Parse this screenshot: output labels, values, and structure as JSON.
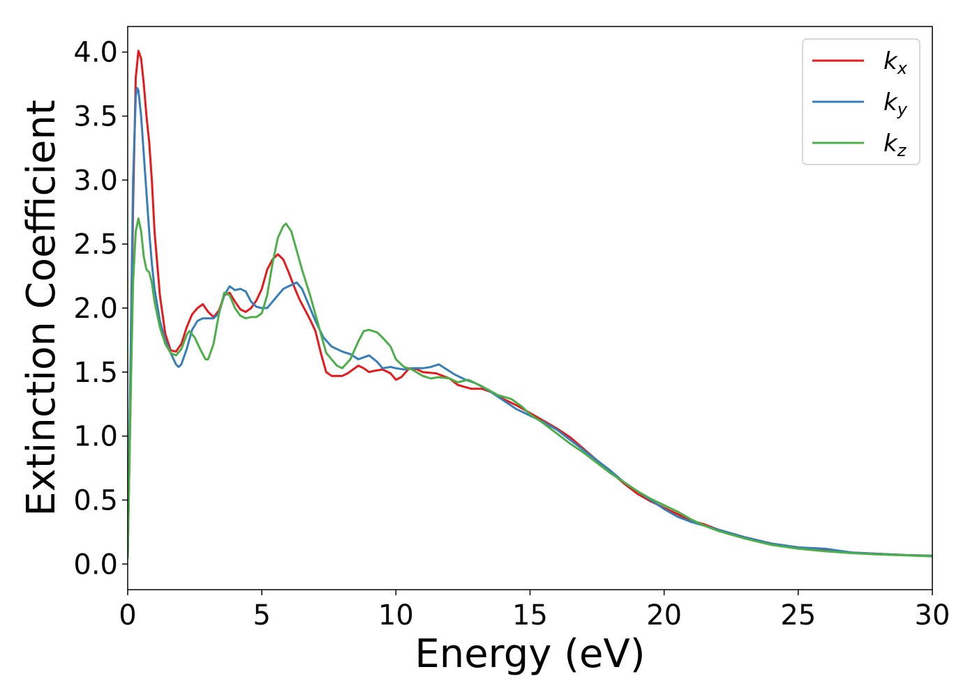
{
  "chart_data": {
    "type": "line",
    "title": "",
    "xlabel": "Energy (eV)",
    "ylabel": "Extinction Coefficient",
    "xlim": [
      0,
      30
    ],
    "ylim": [
      -0.2,
      4.2
    ],
    "xticks": [
      0,
      5,
      10,
      15,
      20,
      25,
      30
    ],
    "xtick_labels": [
      "0",
      "5",
      "10",
      "15",
      "20",
      "25",
      "30"
    ],
    "yticks": [
      0.0,
      0.5,
      1.0,
      1.5,
      2.0,
      2.5,
      3.0,
      3.5,
      4.0
    ],
    "ytick_labels": [
      "0.0",
      "0.5",
      "1.0",
      "1.5",
      "2.0",
      "2.5",
      "3.0",
      "3.5",
      "4.0"
    ],
    "grid": false,
    "legend_position": "top-right",
    "series": [
      {
        "name": "k",
        "subscript": "x",
        "color": "#e41a1c",
        "points": [
          [
            0,
            0.05
          ],
          [
            0.1,
            1.2
          ],
          [
            0.2,
            2.8
          ],
          [
            0.3,
            3.8
          ],
          [
            0.4,
            4.01
          ],
          [
            0.5,
            3.95
          ],
          [
            0.6,
            3.75
          ],
          [
            0.7,
            3.5
          ],
          [
            0.8,
            3.3
          ],
          [
            0.9,
            3.0
          ],
          [
            1.0,
            2.6
          ],
          [
            1.2,
            2.1
          ],
          [
            1.4,
            1.8
          ],
          [
            1.6,
            1.67
          ],
          [
            1.8,
            1.66
          ],
          [
            2.0,
            1.72
          ],
          [
            2.2,
            1.85
          ],
          [
            2.4,
            1.95
          ],
          [
            2.6,
            2.0
          ],
          [
            2.8,
            2.03
          ],
          [
            3.0,
            1.97
          ],
          [
            3.2,
            1.93
          ],
          [
            3.4,
            1.98
          ],
          [
            3.6,
            2.1
          ],
          [
            3.8,
            2.12
          ],
          [
            4.0,
            2.05
          ],
          [
            4.2,
            1.99
          ],
          [
            4.4,
            1.97
          ],
          [
            4.6,
            2.0
          ],
          [
            4.8,
            2.06
          ],
          [
            5.0,
            2.15
          ],
          [
            5.2,
            2.3
          ],
          [
            5.4,
            2.38
          ],
          [
            5.6,
            2.42
          ],
          [
            5.8,
            2.38
          ],
          [
            6.0,
            2.28
          ],
          [
            6.2,
            2.17
          ],
          [
            6.4,
            2.07
          ],
          [
            6.6,
            1.99
          ],
          [
            6.8,
            1.91
          ],
          [
            7.0,
            1.82
          ],
          [
            7.2,
            1.65
          ],
          [
            7.4,
            1.5
          ],
          [
            7.6,
            1.47
          ],
          [
            7.8,
            1.47
          ],
          [
            8.0,
            1.47
          ],
          [
            8.2,
            1.49
          ],
          [
            8.4,
            1.52
          ],
          [
            8.6,
            1.55
          ],
          [
            8.8,
            1.53
          ],
          [
            9.0,
            1.5
          ],
          [
            9.2,
            1.51
          ],
          [
            9.5,
            1.52
          ],
          [
            9.8,
            1.49
          ],
          [
            10.0,
            1.44
          ],
          [
            10.2,
            1.46
          ],
          [
            10.5,
            1.53
          ],
          [
            10.8,
            1.52
          ],
          [
            11.0,
            1.5
          ],
          [
            11.5,
            1.49
          ],
          [
            12.0,
            1.45
          ],
          [
            12.3,
            1.4
          ],
          [
            12.8,
            1.37
          ],
          [
            13.2,
            1.37
          ],
          [
            13.6,
            1.34
          ],
          [
            14.0,
            1.29
          ],
          [
            14.5,
            1.24
          ],
          [
            15.0,
            1.18
          ],
          [
            15.5,
            1.12
          ],
          [
            16.0,
            1.06
          ],
          [
            16.5,
            0.99
          ],
          [
            17.0,
            0.9
          ],
          [
            17.5,
            0.81
          ],
          [
            18.0,
            0.72
          ],
          [
            18.5,
            0.63
          ],
          [
            19.0,
            0.55
          ],
          [
            19.5,
            0.49
          ],
          [
            20.0,
            0.44
          ],
          [
            20.5,
            0.39
          ],
          [
            21.0,
            0.34
          ],
          [
            21.5,
            0.31
          ],
          [
            22.0,
            0.27
          ],
          [
            23.0,
            0.21
          ],
          [
            24.0,
            0.16
          ],
          [
            25.0,
            0.13
          ],
          [
            26.0,
            0.11
          ],
          [
            27.0,
            0.09
          ],
          [
            28.0,
            0.08
          ],
          [
            29.0,
            0.07
          ],
          [
            30.0,
            0.065
          ]
        ]
      },
      {
        "name": "k",
        "subscript": "y",
        "color": "#377eb8",
        "points": [
          [
            0,
            0.05
          ],
          [
            0.1,
            1.5
          ],
          [
            0.2,
            3.0
          ],
          [
            0.3,
            3.65
          ],
          [
            0.35,
            3.72
          ],
          [
            0.4,
            3.7
          ],
          [
            0.5,
            3.5
          ],
          [
            0.6,
            3.2
          ],
          [
            0.7,
            2.9
          ],
          [
            0.8,
            2.6
          ],
          [
            0.9,
            2.35
          ],
          [
            1.0,
            2.15
          ],
          [
            1.2,
            1.9
          ],
          [
            1.4,
            1.75
          ],
          [
            1.6,
            1.65
          ],
          [
            1.8,
            1.56
          ],
          [
            1.9,
            1.54
          ],
          [
            2.0,
            1.56
          ],
          [
            2.2,
            1.68
          ],
          [
            2.4,
            1.83
          ],
          [
            2.6,
            1.9
          ],
          [
            2.8,
            1.92
          ],
          [
            3.0,
            1.92
          ],
          [
            3.2,
            1.92
          ],
          [
            3.4,
            1.96
          ],
          [
            3.6,
            2.1
          ],
          [
            3.8,
            2.17
          ],
          [
            4.0,
            2.14
          ],
          [
            4.2,
            2.15
          ],
          [
            4.4,
            2.13
          ],
          [
            4.6,
            2.05
          ],
          [
            4.8,
            2.01
          ],
          [
            5.0,
            2.0
          ],
          [
            5.2,
            2.0
          ],
          [
            5.4,
            2.05
          ],
          [
            5.6,
            2.1
          ],
          [
            5.8,
            2.15
          ],
          [
            6.0,
            2.17
          ],
          [
            6.2,
            2.19
          ],
          [
            6.3,
            2.2
          ],
          [
            6.5,
            2.15
          ],
          [
            6.8,
            2.0
          ],
          [
            7.0,
            1.9
          ],
          [
            7.3,
            1.77
          ],
          [
            7.6,
            1.7
          ],
          [
            8.0,
            1.66
          ],
          [
            8.3,
            1.64
          ],
          [
            8.6,
            1.6
          ],
          [
            9.0,
            1.63
          ],
          [
            9.3,
            1.58
          ],
          [
            9.5,
            1.53
          ],
          [
            9.8,
            1.54
          ],
          [
            10.0,
            1.53
          ],
          [
            10.3,
            1.52
          ],
          [
            10.6,
            1.53
          ],
          [
            11.0,
            1.53
          ],
          [
            11.3,
            1.54
          ],
          [
            11.6,
            1.56
          ],
          [
            11.9,
            1.52
          ],
          [
            12.2,
            1.48
          ],
          [
            12.6,
            1.44
          ],
          [
            13.0,
            1.41
          ],
          [
            13.5,
            1.35
          ],
          [
            14.0,
            1.28
          ],
          [
            14.5,
            1.21
          ],
          [
            15.0,
            1.16
          ],
          [
            15.5,
            1.11
          ],
          [
            16.0,
            1.05
          ],
          [
            16.5,
            0.97
          ],
          [
            17.0,
            0.89
          ],
          [
            17.5,
            0.81
          ],
          [
            18.0,
            0.73
          ],
          [
            18.5,
            0.64
          ],
          [
            19.0,
            0.57
          ],
          [
            19.5,
            0.5
          ],
          [
            20.0,
            0.43
          ],
          [
            20.5,
            0.37
          ],
          [
            21.0,
            0.33
          ],
          [
            21.5,
            0.3
          ],
          [
            22.0,
            0.27
          ],
          [
            23.0,
            0.21
          ],
          [
            24.0,
            0.16
          ],
          [
            25.0,
            0.13
          ],
          [
            26.0,
            0.12
          ],
          [
            27.0,
            0.09
          ],
          [
            28.0,
            0.08
          ],
          [
            29.0,
            0.07
          ],
          [
            30.0,
            0.065
          ]
        ]
      },
      {
        "name": "k",
        "subscript": "z",
        "color": "#4daf4a",
        "points": [
          [
            0,
            0.05
          ],
          [
            0.1,
            1.2
          ],
          [
            0.2,
            2.2
          ],
          [
            0.3,
            2.6
          ],
          [
            0.4,
            2.7
          ],
          [
            0.5,
            2.6
          ],
          [
            0.6,
            2.4
          ],
          [
            0.7,
            2.3
          ],
          [
            0.8,
            2.28
          ],
          [
            0.9,
            2.2
          ],
          [
            1.0,
            2.05
          ],
          [
            1.2,
            1.85
          ],
          [
            1.4,
            1.72
          ],
          [
            1.6,
            1.65
          ],
          [
            1.8,
            1.63
          ],
          [
            2.0,
            1.68
          ],
          [
            2.2,
            1.79
          ],
          [
            2.3,
            1.82
          ],
          [
            2.5,
            1.77
          ],
          [
            2.7,
            1.68
          ],
          [
            2.9,
            1.6
          ],
          [
            3.0,
            1.6
          ],
          [
            3.2,
            1.72
          ],
          [
            3.4,
            1.95
          ],
          [
            3.6,
            2.12
          ],
          [
            3.8,
            2.1
          ],
          [
            4.0,
            2.0
          ],
          [
            4.2,
            1.94
          ],
          [
            4.4,
            1.92
          ],
          [
            4.6,
            1.93
          ],
          [
            4.8,
            1.93
          ],
          [
            5.0,
            1.96
          ],
          [
            5.2,
            2.1
          ],
          [
            5.4,
            2.35
          ],
          [
            5.6,
            2.55
          ],
          [
            5.8,
            2.64
          ],
          [
            5.9,
            2.66
          ],
          [
            6.1,
            2.6
          ],
          [
            6.3,
            2.45
          ],
          [
            6.5,
            2.3
          ],
          [
            6.8,
            2.1
          ],
          [
            7.0,
            1.95
          ],
          [
            7.2,
            1.8
          ],
          [
            7.4,
            1.65
          ],
          [
            7.6,
            1.6
          ],
          [
            7.8,
            1.55
          ],
          [
            8.0,
            1.53
          ],
          [
            8.3,
            1.6
          ],
          [
            8.6,
            1.74
          ],
          [
            8.8,
            1.82
          ],
          [
            9.0,
            1.83
          ],
          [
            9.3,
            1.81
          ],
          [
            9.5,
            1.77
          ],
          [
            9.8,
            1.7
          ],
          [
            10.0,
            1.6
          ],
          [
            10.3,
            1.54
          ],
          [
            10.6,
            1.52
          ],
          [
            11.0,
            1.47
          ],
          [
            11.3,
            1.45
          ],
          [
            11.6,
            1.46
          ],
          [
            12.0,
            1.45
          ],
          [
            12.3,
            1.42
          ],
          [
            12.7,
            1.44
          ],
          [
            13.2,
            1.39
          ],
          [
            13.8,
            1.32
          ],
          [
            14.3,
            1.29
          ],
          [
            14.7,
            1.23
          ],
          [
            15.0,
            1.17
          ],
          [
            15.5,
            1.1
          ],
          [
            16.0,
            1.02
          ],
          [
            16.5,
            0.94
          ],
          [
            17.0,
            0.87
          ],
          [
            17.5,
            0.79
          ],
          [
            18.0,
            0.71
          ],
          [
            18.5,
            0.64
          ],
          [
            19.0,
            0.57
          ],
          [
            19.5,
            0.51
          ],
          [
            20.0,
            0.46
          ],
          [
            20.5,
            0.41
          ],
          [
            21.0,
            0.35
          ],
          [
            21.5,
            0.3
          ],
          [
            22.0,
            0.26
          ],
          [
            23.0,
            0.2
          ],
          [
            24.0,
            0.15
          ],
          [
            25.0,
            0.12
          ],
          [
            26.0,
            0.1
          ],
          [
            27.0,
            0.085
          ],
          [
            28.0,
            0.075
          ],
          [
            29.0,
            0.068
          ],
          [
            30.0,
            0.06
          ]
        ]
      }
    ]
  }
}
